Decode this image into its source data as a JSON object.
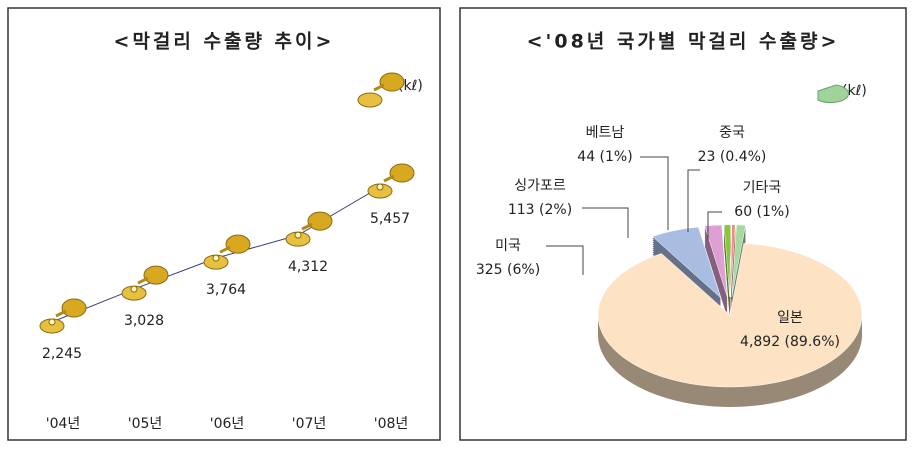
{
  "chart_data": [
    {
      "type": "line",
      "title": "<막걸리 수출량 추이>",
      "unit": "(kℓ)",
      "categories": [
        "'04년",
        "'05년",
        "'06년",
        "'07년",
        "'08년"
      ],
      "values": [
        2245,
        3028,
        3764,
        4312,
        5457
      ],
      "value_labels": [
        "2,245",
        "3,028",
        "3,764",
        "4,312",
        "5,457"
      ],
      "color": "#3a3f7a"
    },
    {
      "type": "pie",
      "title": "<'08년 국가별 막걸리 수출량>",
      "unit": "(kℓ)",
      "categories": [
        "일본",
        "미국",
        "싱가포르",
        "베트남",
        "중국",
        "기타국"
      ],
      "values": [
        4892,
        325,
        113,
        44,
        23,
        60
      ],
      "value_labels": [
        "4,892 (89.6%)",
        "325 (6%)",
        "113 (2%)",
        "44 (1%)",
        "23 (0.4%)",
        "60 (1%)"
      ],
      "colors": [
        "#fde3c4",
        "#a9bde2",
        "#dea0d2",
        "#8cc63e",
        "#f08a82",
        "#a9d9a3"
      ]
    }
  ]
}
